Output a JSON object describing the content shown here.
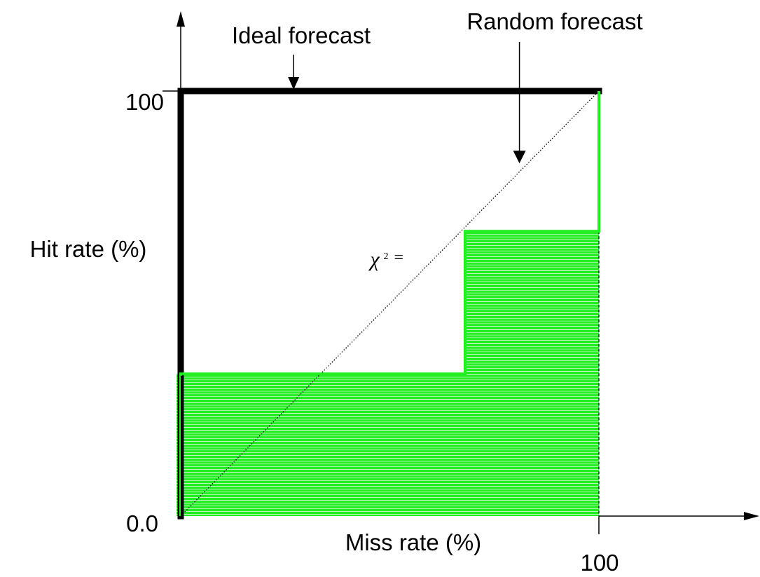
{
  "chart_data": {
    "type": "line",
    "xlabel": "Miss rate (%)",
    "ylabel": "Hit rate (%)",
    "xlim": [
      0,
      100
    ],
    "ylim": [
      0,
      100
    ],
    "x_tick_labels": [
      "100"
    ],
    "y_tick_labels": [
      "0.0",
      "100"
    ],
    "grid": false,
    "series": [
      {
        "name": "Ideal forecast",
        "points": [
          [
            0,
            0
          ],
          [
            0,
            100
          ],
          [
            100,
            100
          ]
        ],
        "color": "#000000"
      },
      {
        "name": "Random forecast",
        "points": [
          [
            0,
            0
          ],
          [
            100,
            100
          ]
        ],
        "color": "#000000"
      },
      {
        "points": [
          [
            0,
            0
          ],
          [
            0,
            33.5
          ],
          [
            68,
            33.5
          ],
          [
            68,
            67
          ],
          [
            100,
            67
          ],
          [
            100,
            100
          ]
        ],
        "color": "#22ee22"
      }
    ],
    "annotations": [
      {
        "text": "Ideal forecast",
        "target": [
          27,
          100
        ]
      },
      {
        "text": "Random forecast",
        "target": [
          81,
          83
        ]
      },
      {
        "text": "χ",
        "superscript": "2",
        "suffix": "=",
        "at": [
          48,
          60
        ]
      }
    ]
  },
  "colors": {
    "fill": "#22ee22",
    "fill_stripe": "#b8f5b8",
    "axis": "#000000"
  }
}
